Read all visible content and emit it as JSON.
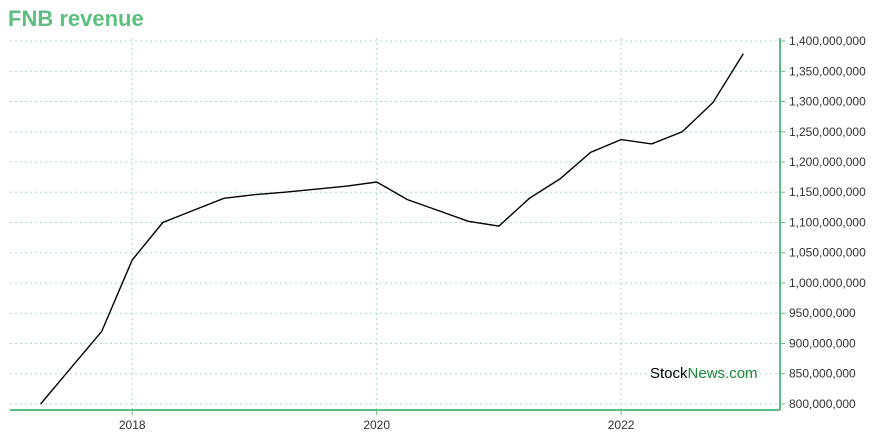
{
  "chart_data": {
    "type": "line",
    "title": "FNB revenue",
    "xlabel": "",
    "ylabel": "",
    "x_ticks": [
      "2018",
      "2020",
      "2022"
    ],
    "y_ticks": [
      "800,000,000",
      "850,000,000",
      "900,000,000",
      "950,000,000",
      "1,000,000,000",
      "1,050,000,000",
      "1,100,000,000",
      "1,150,000,000",
      "1,200,000,000",
      "1,250,000,000",
      "1,300,000,000",
      "1,350,000,000",
      "1,400,000,000"
    ],
    "ylim": [
      790000000,
      1405000000
    ],
    "xlim": [
      2017.0,
      2023.3
    ],
    "grid": true,
    "series": [
      {
        "x": [
          2017.25,
          2017.5,
          2017.75,
          2018.0,
          2018.25,
          2018.5,
          2018.75,
          2019.0,
          2019.25,
          2019.5,
          2019.75,
          2020.0,
          2020.25,
          2020.5,
          2020.75,
          2021.0,
          2021.25,
          2021.5,
          2021.75,
          2022.0,
          2022.25,
          2022.5,
          2022.75,
          2023.0
        ],
        "values": [
          800000000,
          860000000,
          920000000,
          1038000000,
          1100000000,
          1120000000,
          1140000000,
          1146000000,
          1150000000,
          1155000000,
          1160000000,
          1167000000,
          1138000000,
          1120000000,
          1102000000,
          1094000000,
          1140000000,
          1172000000,
          1216000000,
          1237000000,
          1230000000,
          1250000000,
          1298000000,
          1379000000
        ]
      }
    ]
  },
  "watermark": {
    "part1": "Stock",
    "part2": "News.com"
  },
  "colors": {
    "accent": "#5cbf7f",
    "line": "#000000",
    "grid": "#a8dcc0"
  }
}
